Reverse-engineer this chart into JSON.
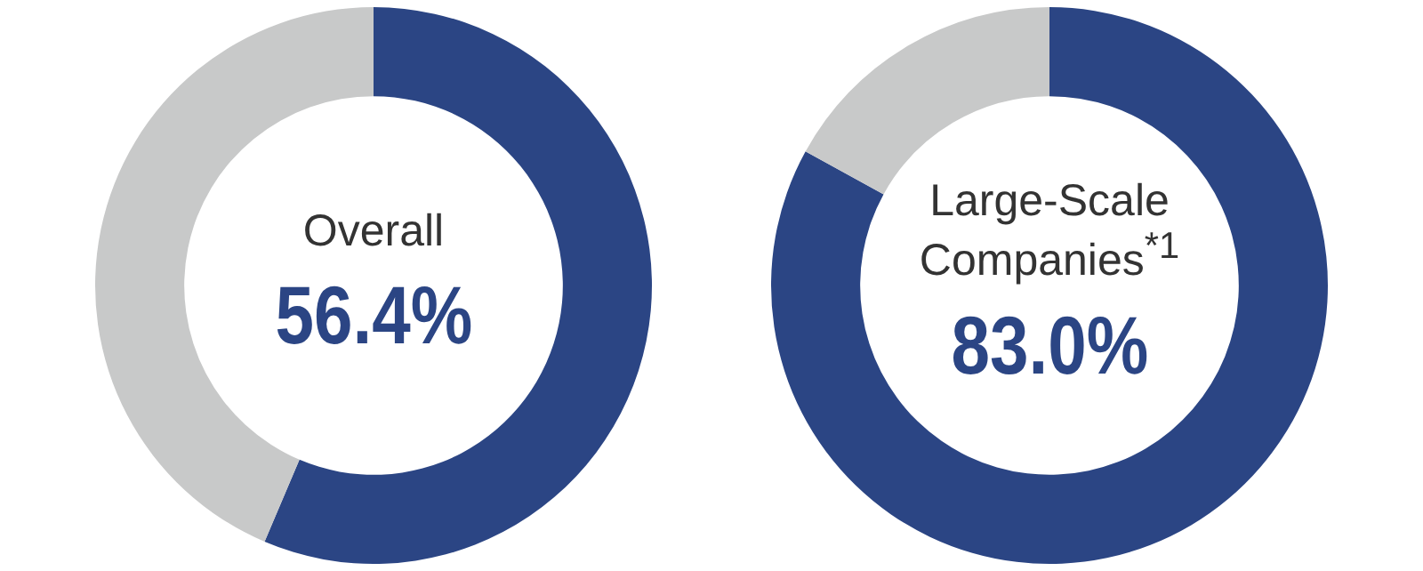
{
  "chart_data": [
    {
      "type": "donut",
      "title": "Overall",
      "categories": [
        null,
        null
      ],
      "values": [
        56.4,
        43.6
      ],
      "colors": [
        "#2b4584",
        "#c8c9c9"
      ],
      "value_labels": [
        "56.4%",
        null
      ]
    },
    {
      "type": "donut",
      "title": "Large-Scale Companies$^{*1}$",
      "categories": [
        null,
        null
      ],
      "values": [
        83.0,
        17.0
      ],
      "colors": [
        "#2b4584",
        "#c8c9c9"
      ],
      "value_labels": [
        "83.0%",
        null
      ]
    }
  ]
}
